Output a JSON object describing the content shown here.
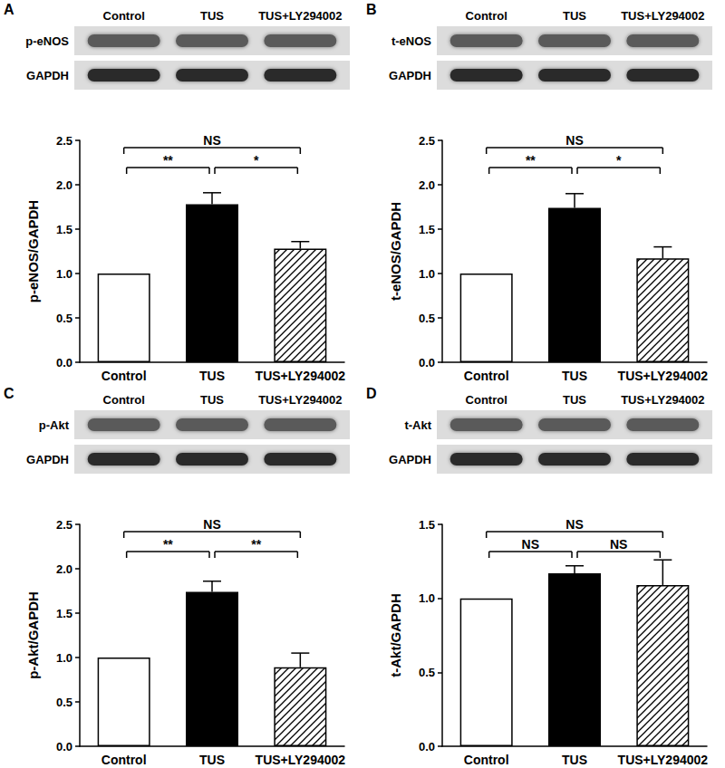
{
  "chart_data": [
    {
      "type": "bar",
      "panel": "A",
      "blot": {
        "lanes": [
          "Control",
          "TUS",
          "TUS+LY294002"
        ],
        "rows": [
          "p-eNOS",
          "GAPDH"
        ]
      },
      "ylabel": "p-eNOS/GAPDH",
      "categories": [
        "Control",
        "TUS",
        "TUS+LY294002"
      ],
      "values": [
        1.0,
        1.78,
        1.28
      ],
      "errors": [
        null,
        0.13,
        0.08
      ],
      "colors": [
        "#ffffff",
        "#000000",
        "#ffffff"
      ],
      "ylim": [
        0,
        2.5
      ],
      "yticks": [
        {
          "value": 0,
          "label": "0.0"
        },
        0.5,
        {
          "value": 1,
          "label": "1.0"
        },
        1.5,
        {
          "value": 2,
          "label": "2.0"
        },
        2.5
      ],
      "comparisons": [
        {
          "from": "Control",
          "to": "TUS+LY294002",
          "label": "NS"
        },
        {
          "from": "Control",
          "to": "TUS",
          "label": "**"
        },
        {
          "from": "TUS",
          "to": "TUS+LY294002",
          "label": "*"
        }
      ]
    },
    {
      "type": "bar",
      "panel": "B",
      "blot": {
        "lanes": [
          "Control",
          "TUS",
          "TUS+LY294002"
        ],
        "rows": [
          "t-eNOS",
          "GAPDH"
        ]
      },
      "ylabel": "t-eNOS/GAPDH",
      "categories": [
        "Control",
        "TUS",
        "TUS+LY294002"
      ],
      "values": [
        1.0,
        1.74,
        1.17
      ],
      "errors": [
        null,
        0.16,
        0.13
      ],
      "colors": [
        "#ffffff",
        "#000000",
        "#ffffff"
      ],
      "ylim": [
        0,
        2.5
      ],
      "yticks": [
        {
          "value": 0,
          "label": "0.0"
        },
        0.5,
        {
          "value": 1,
          "label": "1.0"
        },
        1.5,
        {
          "value": 2,
          "label": "2.0"
        },
        2.5
      ],
      "comparisons": [
        {
          "from": "Control",
          "to": "TUS+LY294002",
          "label": "NS"
        },
        {
          "from": "Control",
          "to": "TUS",
          "label": "**"
        },
        {
          "from": "TUS",
          "to": "TUS+LY294002",
          "label": "*"
        }
      ]
    },
    {
      "type": "bar",
      "panel": "C",
      "blot": {
        "lanes": [
          "Control",
          "TUS",
          "TUS+LY294002"
        ],
        "rows": [
          "p-Akt",
          "GAPDH"
        ]
      },
      "ylabel": "p-Akt/GAPDH",
      "categories": [
        "Control",
        "TUS",
        "TUS+LY294002"
      ],
      "values": [
        1.0,
        1.74,
        0.89
      ],
      "errors": [
        null,
        0.12,
        0.16
      ],
      "colors": [
        "#ffffff",
        "#000000",
        "#ffffff"
      ],
      "ylim": [
        0,
        2.5
      ],
      "yticks": [
        {
          "value": 0,
          "label": "0.0"
        },
        0.5,
        {
          "value": 1,
          "label": "1.0"
        },
        1.5,
        {
          "value": 2,
          "label": "2.0"
        },
        2.5
      ],
      "comparisons": [
        {
          "from": "Control",
          "to": "TUS+LY294002",
          "label": "NS"
        },
        {
          "from": "Control",
          "to": "TUS",
          "label": "**"
        },
        {
          "from": "TUS",
          "to": "TUS+LY294002",
          "label": "**"
        }
      ]
    },
    {
      "type": "bar",
      "panel": "D",
      "blot": {
        "lanes": [
          "Control",
          "TUS",
          "TUS+LY294002"
        ],
        "rows": [
          "t-Akt",
          "GAPDH"
        ]
      },
      "ylabel": "t-Akt/GAPDH",
      "categories": [
        "Control",
        "TUS",
        "TUS+LY294002"
      ],
      "values": [
        1.0,
        1.17,
        1.09
      ],
      "errors": [
        null,
        0.05,
        0.17
      ],
      "colors": [
        "#ffffff",
        "#000000",
        "#ffffff"
      ],
      "ylim": [
        0,
        1.5
      ],
      "yticks": [
        {
          "value": 0,
          "label": "0.0"
        },
        0.5,
        {
          "value": 1,
          "label": "1.0"
        },
        1.5
      ],
      "comparisons": [
        {
          "from": "Control",
          "to": "TUS+LY294002",
          "label": "NS"
        },
        {
          "from": "Control",
          "to": "TUS",
          "label": "NS"
        },
        {
          "from": "TUS",
          "to": "TUS+LY294002",
          "label": "NS"
        }
      ]
    }
  ]
}
